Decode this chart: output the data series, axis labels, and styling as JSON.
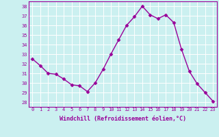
{
  "x": [
    0,
    1,
    2,
    3,
    4,
    5,
    6,
    7,
    8,
    9,
    10,
    11,
    12,
    13,
    14,
    15,
    16,
    17,
    18,
    19,
    20,
    21,
    22,
    23
  ],
  "y": [
    32.5,
    31.8,
    31.0,
    30.9,
    30.4,
    29.8,
    29.7,
    29.1,
    30.0,
    31.4,
    33.0,
    34.5,
    36.0,
    36.9,
    38.0,
    37.1,
    36.7,
    37.1,
    36.3,
    33.5,
    31.2,
    29.9,
    29.0,
    28.1
  ],
  "line_color": "#990099",
  "marker": "D",
  "markersize": 2.5,
  "linewidth": 1.0,
  "bg_color": "#cbf0f0",
  "grid_color": "#ffffff",
  "xlabel": "Windchill (Refroidissement éolien,°C)",
  "xlabel_color": "#990099",
  "tick_color": "#990099",
  "spine_color": "#990099",
  "ylabel_ticks": [
    28,
    29,
    30,
    31,
    32,
    33,
    34,
    35,
    36,
    37,
    38
  ],
  "xlim": [
    -0.5,
    23.5
  ],
  "ylim": [
    27.5,
    38.5
  ],
  "tick_fontsize": 5.0,
  "xlabel_fontsize": 6.0
}
